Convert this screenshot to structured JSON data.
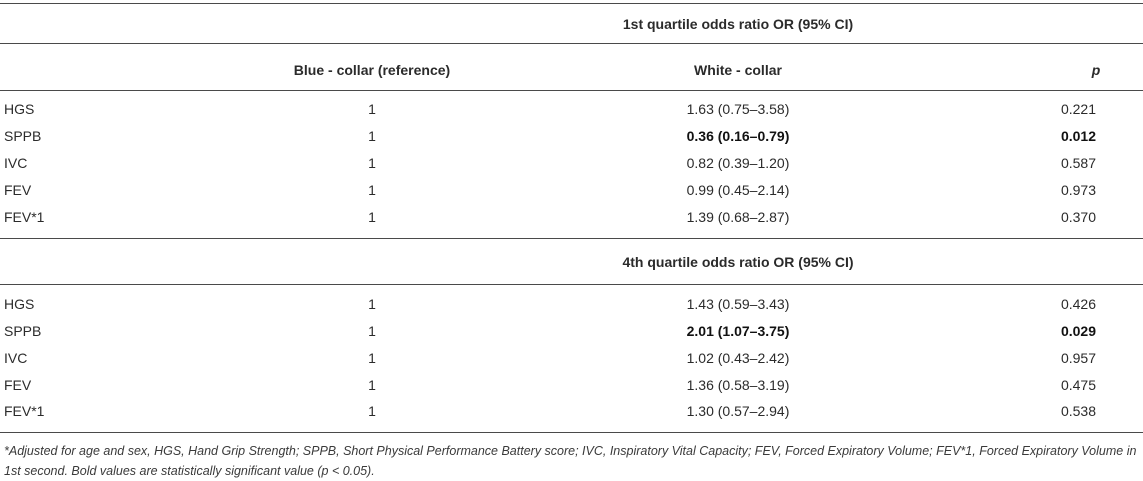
{
  "section1_title": "1st quartile odds ratio OR (95% CI)",
  "section2_title": "4th quartile odds ratio OR (95% CI)",
  "columns": {
    "blue": "Blue - collar (reference)",
    "white": "White - collar",
    "p": "p"
  },
  "q1_rows": [
    {
      "label": "HGS",
      "blue": "1",
      "white": "1.63 (0.75–3.58)",
      "p": "0.221"
    },
    {
      "label": "SPPB",
      "blue": "1",
      "white": "0.36 (0.16–0.79)",
      "p": "0.012"
    },
    {
      "label": "IVC",
      "blue": "1",
      "white": "0.82 (0.39–1.20)",
      "p": "0.587"
    },
    {
      "label": "FEV",
      "blue": "1",
      "white": "0.99 (0.45–2.14)",
      "p": "0.973"
    },
    {
      "label": "FEV*1",
      "blue": "1",
      "white": "1.39 (0.68–2.87)",
      "p": "0.370"
    }
  ],
  "q4_rows": [
    {
      "label": "HGS",
      "blue": "1",
      "white": "1.43 (0.59–3.43)",
      "p": "0.426"
    },
    {
      "label": "SPPB",
      "blue": "1",
      "white": "2.01 (1.07–3.75)",
      "p": "0.029"
    },
    {
      "label": "IVC",
      "blue": "1",
      "white": "1.02 (0.43–2.42)",
      "p": "0.957"
    },
    {
      "label": "FEV",
      "blue": "1",
      "white": "1.36 (0.58–3.19)",
      "p": "0.475"
    },
    {
      "label": "FEV*1",
      "blue": "1",
      "white": "1.30 (0.57–2.94)",
      "p": "0.538"
    }
  ],
  "footnote": "*Adjusted for age and sex, HGS, Hand Grip Strength; SPPB, Short Physical Performance Battery score; IVC, Inspiratory Vital Capacity; FEV, Forced Expiratory Volume; FEV*1, Forced Expiratory Volume in 1st second. Bold values are statistically significant value (p < 0.05)."
}
